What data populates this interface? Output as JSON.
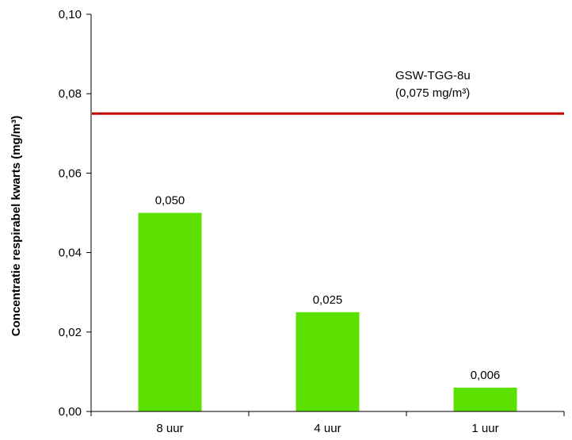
{
  "chart_data": {
    "type": "bar",
    "title": "",
    "xlabel": "",
    "ylabel": "Concentratie respirabel kwarts (mg/m³)",
    "categories": [
      "8 uur",
      "4 uur",
      "1 uur"
    ],
    "values": [
      0.05,
      0.025,
      0.006
    ],
    "data_labels": [
      "0,050",
      "0,025",
      "0,006"
    ],
    "ylim": [
      0,
      0.1
    ],
    "yticks": [
      0.0,
      0.02,
      0.04,
      0.06,
      0.08,
      0.1
    ],
    "ytick_labels": [
      "0,00",
      "0,02",
      "0,04",
      "0,06",
      "0,08",
      "0,10"
    ],
    "grid": false,
    "bar_color": "#5ce000",
    "reference_line": {
      "value": 0.075,
      "color": "#c00000",
      "label_line1": "GSW-TGG-8u",
      "label_line2": "(0,075 mg/m³)"
    }
  }
}
